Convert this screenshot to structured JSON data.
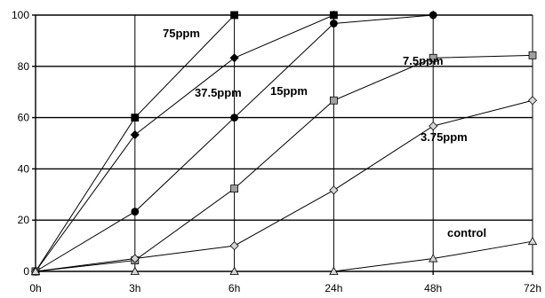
{
  "chart_data": {
    "type": "line",
    "title": "",
    "xlabel": "",
    "ylabel": "",
    "categories": [
      "0h",
      "3h",
      "6h",
      "24h",
      "48h",
      "72h"
    ],
    "ylim": [
      0,
      100
    ],
    "yticks": [
      "0",
      "20",
      "40",
      "60",
      "80",
      "100"
    ],
    "grid": true,
    "legend": "none (series labeled inline)",
    "series": [
      {
        "name": "75ppm",
        "marker": "square",
        "fill": "#000000",
        "values": [
          0,
          60,
          100,
          100,
          null,
          null
        ]
      },
      {
        "name": "37.5ppm",
        "marker": "diamond",
        "fill": "#000000",
        "values": [
          0,
          53.3,
          83.3,
          100,
          100,
          null
        ]
      },
      {
        "name": "15ppm",
        "marker": "circle",
        "fill": "#000000",
        "values": [
          0,
          23.3,
          60,
          96.7,
          100,
          null
        ]
      },
      {
        "name": "7.5ppm",
        "marker": "square",
        "fill": "#a0a0a0",
        "values": [
          0,
          4.3,
          32.3,
          66.7,
          83.3,
          84.3
        ]
      },
      {
        "name": "3.75ppm",
        "marker": "diamond",
        "fill": "#d6d6d6",
        "values": [
          0,
          5,
          10,
          31.7,
          56.7,
          66.7
        ]
      },
      {
        "name": "control",
        "marker": "triangle",
        "fill": "#d6d6d6",
        "values": [
          0,
          0,
          0,
          0,
          5,
          11.7
        ]
      }
    ]
  }
}
